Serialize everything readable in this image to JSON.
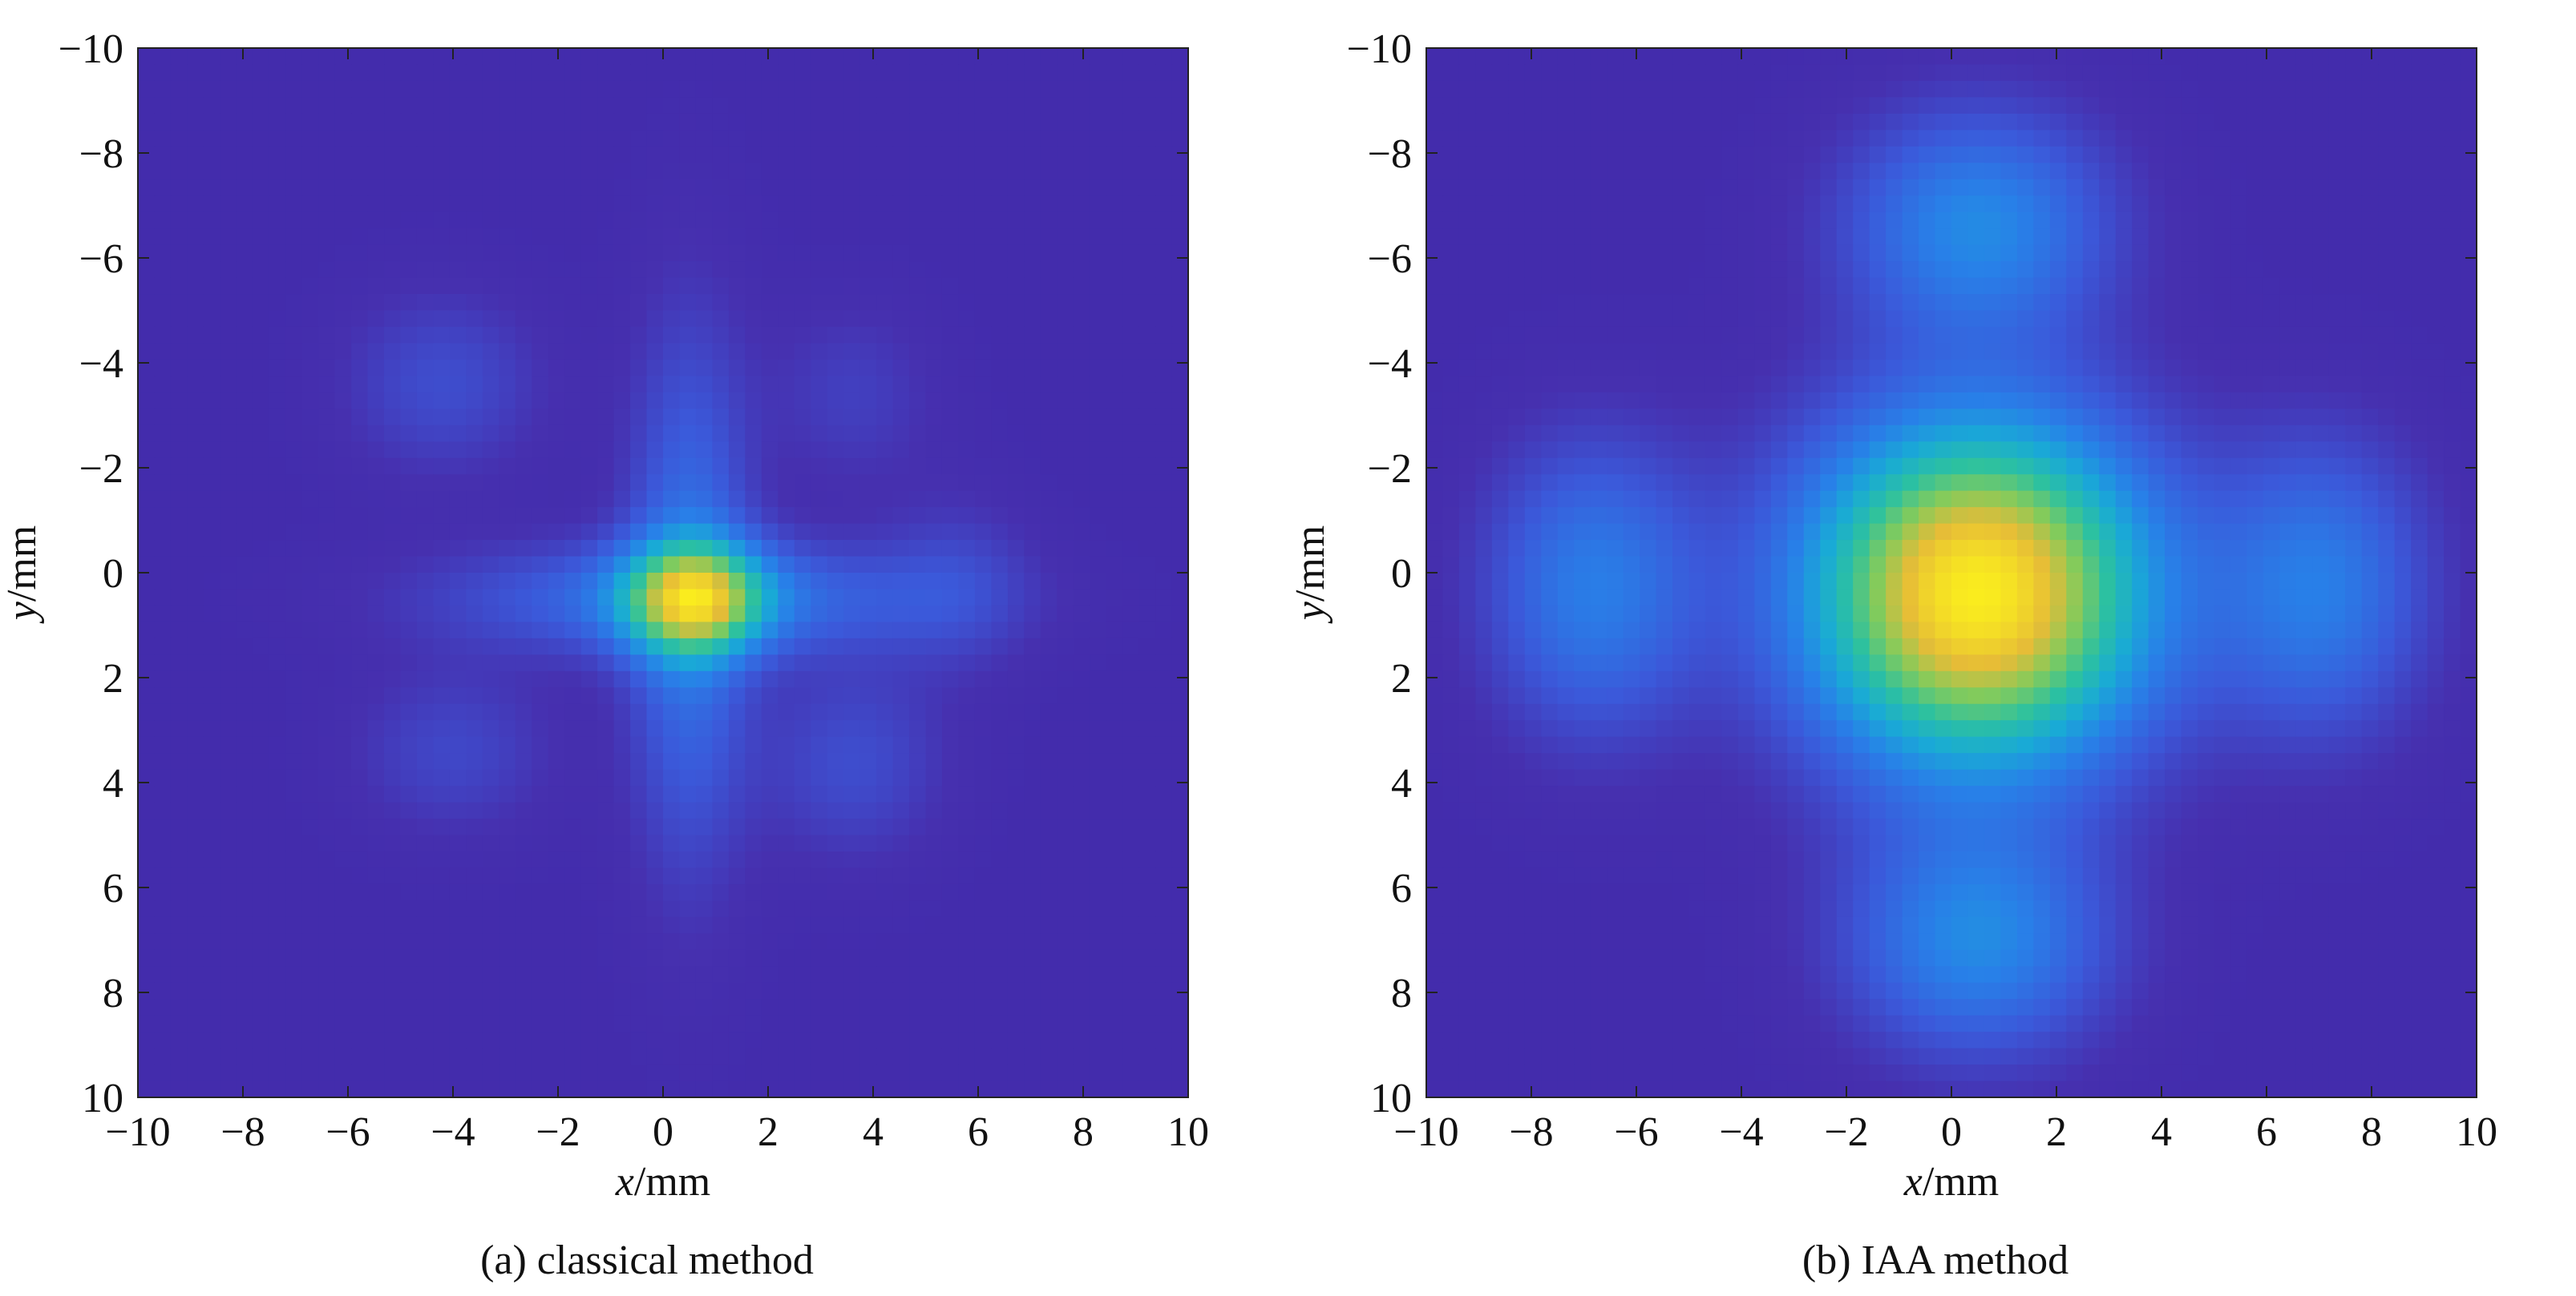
{
  "chart_data": [
    {
      "type": "heatmap",
      "panel_id": "a",
      "caption": "(a)  classical method",
      "xlabel_var": "x",
      "xlabel_unit": "/mm",
      "ylabel_var": "y",
      "ylabel_unit": "/mm",
      "xlim": [
        -10,
        10
      ],
      "ylim": [
        -10,
        10
      ],
      "y_reversed": true,
      "xticks": [
        -10,
        -8,
        -6,
        -4,
        -2,
        0,
        2,
        4,
        6,
        8,
        10
      ],
      "yticks": [
        -10,
        -8,
        -6,
        -4,
        -2,
        0,
        2,
        4,
        6,
        8,
        10
      ],
      "xtick_labels": [
        "−10",
        "−8",
        "−6",
        "−4",
        "−2",
        "0",
        "2",
        "4",
        "6",
        "8",
        "10"
      ],
      "ytick_labels": [
        "−10",
        "−8",
        "−6",
        "−4",
        "−2",
        "0",
        "2",
        "4",
        "6",
        "8",
        "10"
      ],
      "colormap": "parula",
      "grid": false,
      "components": [
        {
          "x": 0.6,
          "y": 0.5,
          "sx": 0.9,
          "sy": 0.7,
          "amp": 1.0
        },
        {
          "x": 0.6,
          "y": 0.5,
          "sx": 3.2,
          "sy": 0.75,
          "amp": 0.42
        },
        {
          "x": 0.5,
          "y": 0.5,
          "sx": 0.8,
          "sy": 3.4,
          "amp": 0.42
        },
        {
          "x": -4.2,
          "y": -3.6,
          "sx": 1.3,
          "sy": 1.2,
          "amp": 0.2
        },
        {
          "x": 3.6,
          "y": -3.4,
          "sx": 1.1,
          "sy": 1.2,
          "amp": 0.13
        },
        {
          "x": -4.0,
          "y": 3.4,
          "sx": 1.3,
          "sy": 1.1,
          "amp": 0.17
        },
        {
          "x": 3.6,
          "y": 3.6,
          "sx": 1.2,
          "sy": 1.3,
          "amp": 0.2
        },
        {
          "x": 5.6,
          "y": 0.2,
          "sx": 1.0,
          "sy": 1.2,
          "amp": 0.14
        }
      ]
    },
    {
      "type": "heatmap",
      "panel_id": "b",
      "caption": "(b)  IAA method",
      "xlabel_var": "x",
      "xlabel_unit": "/mm",
      "ylabel_var": "y",
      "ylabel_unit": "/mm",
      "xlim": [
        -10,
        10
      ],
      "ylim": [
        -10,
        10
      ],
      "y_reversed": true,
      "xticks": [
        -10,
        -8,
        -6,
        -4,
        -2,
        0,
        2,
        4,
        6,
        8,
        10
      ],
      "yticks": [
        -10,
        -8,
        -6,
        -4,
        -2,
        0,
        2,
        4,
        6,
        8,
        10
      ],
      "xtick_labels": [
        "−10",
        "−8",
        "−6",
        "−4",
        "−2",
        "0",
        "2",
        "4",
        "6",
        "8",
        "10"
      ],
      "ytick_labels": [
        "−10",
        "−8",
        "−6",
        "−4",
        "−2",
        "0",
        "2",
        "4",
        "6",
        "8",
        "10"
      ],
      "colormap": "parula",
      "grid": false,
      "components": [
        {
          "x": 0.5,
          "y": 0.4,
          "sx": 2.2,
          "sy": 2.2,
          "amp": 1.0
        },
        {
          "x": 0.5,
          "y": -6.6,
          "sx": 1.7,
          "sy": 1.5,
          "amp": 0.3
        },
        {
          "x": 0.5,
          "y": 7.0,
          "sx": 1.7,
          "sy": 1.5,
          "amp": 0.3
        },
        {
          "x": -6.8,
          "y": 0.3,
          "sx": 1.4,
          "sy": 1.9,
          "amp": 0.26
        },
        {
          "x": 7.0,
          "y": 0.3,
          "sx": 1.4,
          "sy": 1.9,
          "amp": 0.26
        }
      ]
    }
  ]
}
